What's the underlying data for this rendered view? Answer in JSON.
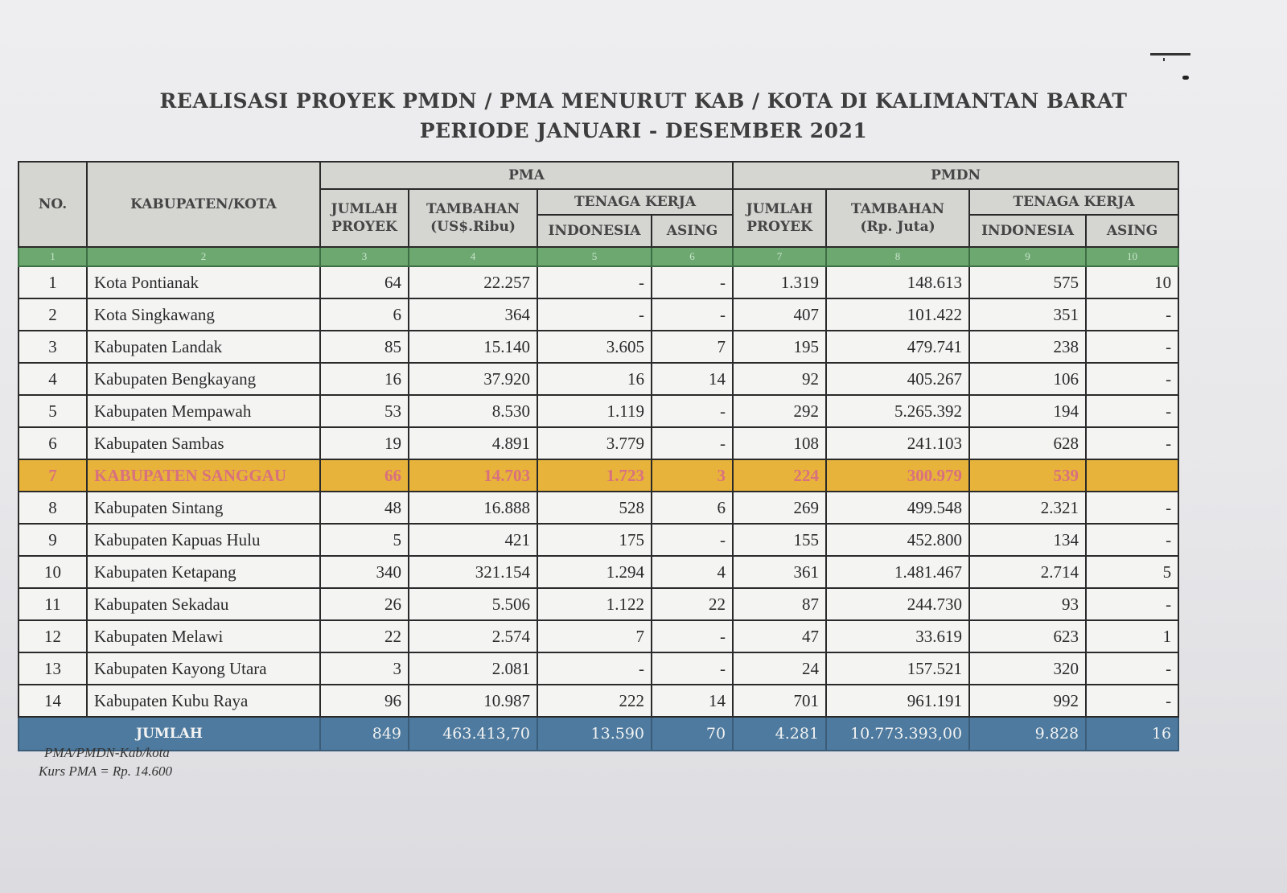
{
  "title": {
    "line1": "REALISASI PROYEK PMDN / PMA MENURUT KAB / KOTA DI KALIMANTAN BARAT",
    "line2": "PERIODE JANUARI - DESEMBER 2021"
  },
  "header": {
    "no": "NO.",
    "kab": "KABUPATEN/KOTA",
    "pma": "PMA",
    "pmdn": "PMDN",
    "pma_jumlah": "JUMLAH PROYEK",
    "pma_tambahan": "TAMBAHAN (US$.Ribu)",
    "pma_tenaga": "TENAGA KERJA",
    "pma_indonesia": "INDONESIA",
    "pma_asing": "ASING",
    "pmdn_jumlah": "JUMLAH PROYEK",
    "pmdn_tambahan": "TAMBAHAN (Rp. Juta)",
    "pmdn_tenaga": "TENAGA KERJA",
    "pmdn_indonesia": "INDONESIA",
    "pmdn_asing": "ASING"
  },
  "col_numbers": [
    "1",
    "2",
    "3",
    "4",
    "5",
    "6",
    "7",
    "8",
    "9",
    "10"
  ],
  "rows": [
    {
      "no": "1",
      "name": "Kota Pontianak",
      "pma_proyek": "64",
      "pma_tambahan": "22.257",
      "pma_indo": "-",
      "pma_asing": "-",
      "pmdn_proyek": "1.319",
      "pmdn_tambahan": "148.613",
      "pmdn_indo": "575",
      "pmdn_asing": "10"
    },
    {
      "no": "2",
      "name": "Kota Singkawang",
      "pma_proyek": "6",
      "pma_tambahan": "364",
      "pma_indo": "-",
      "pma_asing": "-",
      "pmdn_proyek": "407",
      "pmdn_tambahan": "101.422",
      "pmdn_indo": "351",
      "pmdn_asing": "-"
    },
    {
      "no": "3",
      "name": "Kabupaten Landak",
      "pma_proyek": "85",
      "pma_tambahan": "15.140",
      "pma_indo": "3.605",
      "pma_asing": "7",
      "pmdn_proyek": "195",
      "pmdn_tambahan": "479.741",
      "pmdn_indo": "238",
      "pmdn_asing": "-"
    },
    {
      "no": "4",
      "name": "Kabupaten Bengkayang",
      "pma_proyek": "16",
      "pma_tambahan": "37.920",
      "pma_indo": "16",
      "pma_asing": "14",
      "pmdn_proyek": "92",
      "pmdn_tambahan": "405.267",
      "pmdn_indo": "106",
      "pmdn_asing": "-"
    },
    {
      "no": "5",
      "name": "Kabupaten Mempawah",
      "pma_proyek": "53",
      "pma_tambahan": "8.530",
      "pma_indo": "1.119",
      "pma_asing": "-",
      "pmdn_proyek": "292",
      "pmdn_tambahan": "5.265.392",
      "pmdn_indo": "194",
      "pmdn_asing": "-"
    },
    {
      "no": "6",
      "name": "Kabupaten Sambas",
      "pma_proyek": "19",
      "pma_tambahan": "4.891",
      "pma_indo": "3.779",
      "pma_asing": "-",
      "pmdn_proyek": "108",
      "pmdn_tambahan": "241.103",
      "pmdn_indo": "628",
      "pmdn_asing": "-"
    },
    {
      "no": "7",
      "name": "KABUPATEN SANGGAU",
      "pma_proyek": "66",
      "pma_tambahan": "14.703",
      "pma_indo": "1.723",
      "pma_asing": "3",
      "pmdn_proyek": "224",
      "pmdn_tambahan": "300.979",
      "pmdn_indo": "539",
      "pmdn_asing": "",
      "highlight": true
    },
    {
      "no": "8",
      "name": "Kabupaten Sintang",
      "pma_proyek": "48",
      "pma_tambahan": "16.888",
      "pma_indo": "528",
      "pma_asing": "6",
      "pmdn_proyek": "269",
      "pmdn_tambahan": "499.548",
      "pmdn_indo": "2.321",
      "pmdn_asing": "-"
    },
    {
      "no": "9",
      "name": "Kabupaten Kapuas Hulu",
      "pma_proyek": "5",
      "pma_tambahan": "421",
      "pma_indo": "175",
      "pma_asing": "-",
      "pmdn_proyek": "155",
      "pmdn_tambahan": "452.800",
      "pmdn_indo": "134",
      "pmdn_asing": "-"
    },
    {
      "no": "10",
      "name": "Kabupaten Ketapang",
      "pma_proyek": "340",
      "pma_tambahan": "321.154",
      "pma_indo": "1.294",
      "pma_asing": "4",
      "pmdn_proyek": "361",
      "pmdn_tambahan": "1.481.467",
      "pmdn_indo": "2.714",
      "pmdn_asing": "5"
    },
    {
      "no": "11",
      "name": "Kabupaten Sekadau",
      "pma_proyek": "26",
      "pma_tambahan": "5.506",
      "pma_indo": "1.122",
      "pma_asing": "22",
      "pmdn_proyek": "87",
      "pmdn_tambahan": "244.730",
      "pmdn_indo": "93",
      "pmdn_asing": "-"
    },
    {
      "no": "12",
      "name": "Kabupaten Melawi",
      "pma_proyek": "22",
      "pma_tambahan": "2.574",
      "pma_indo": "7",
      "pma_asing": "-",
      "pmdn_proyek": "47",
      "pmdn_tambahan": "33.619",
      "pmdn_indo": "623",
      "pmdn_asing": "1"
    },
    {
      "no": "13",
      "name": "Kabupaten Kayong Utara",
      "pma_proyek": "3",
      "pma_tambahan": "2.081",
      "pma_indo": "-",
      "pma_asing": "-",
      "pmdn_proyek": "24",
      "pmdn_tambahan": "157.521",
      "pmdn_indo": "320",
      "pmdn_asing": "-"
    },
    {
      "no": "14",
      "name": "Kabupaten Kubu Raya",
      "pma_proyek": "96",
      "pma_tambahan": "10.987",
      "pma_indo": "222",
      "pma_asing": "14",
      "pmdn_proyek": "701",
      "pmdn_tambahan": "961.191",
      "pmdn_indo": "992",
      "pmdn_asing": "-"
    }
  ],
  "total": {
    "label": "JUMLAH",
    "pma_proyek": "849",
    "pma_tambahan": "463.413,70",
    "pma_indo": "13.590",
    "pma_asing": "70",
    "pmdn_proyek": "4.281",
    "pmdn_tambahan": "10.773.393,00",
    "pmdn_indo": "9.828",
    "pmdn_asing": "16"
  },
  "notes": {
    "source": "PMA/PMDN-Kab/kota",
    "kurs": "Kurs PMA = Rp. 14.600"
  },
  "colors": {
    "header_bg": "#d5d5d2",
    "number_row": "#6da871",
    "highlight_row": "#e8b33a",
    "total_row": "#4d7a9e"
  }
}
